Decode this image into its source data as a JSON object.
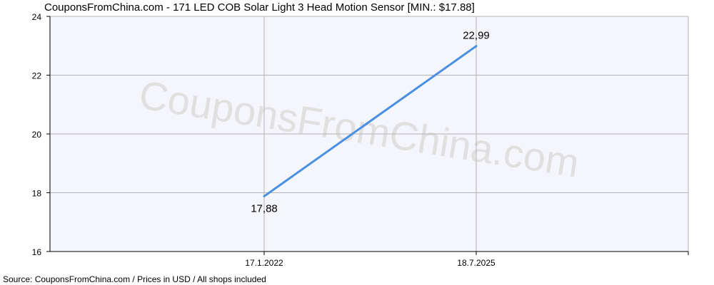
{
  "title": "CouponsFromChina.com - 171 LED COB Solar Light 3 Head Motion Sensor [MIN.: $17.88]",
  "watermark": "CouponsFromChina.com",
  "footer": "Source: CouponsFromChina.com / Prices in USD / All shops included",
  "colors": {
    "plot_background": "#f5f5fc",
    "grid": "#b4b4b4",
    "line": "#4a90e2",
    "axis": "#000000",
    "watermark": "#dcdcdc"
  },
  "chart_data": {
    "type": "line",
    "title": "CouponsFromChina.com - 171 LED COB Solar Light 3 Head Motion Sensor [MIN.: $17.88]",
    "xlabel": "",
    "ylabel": "",
    "x_ticks": [
      "17.1.2022",
      "18.7.2025"
    ],
    "y_ticks": [
      16,
      18,
      20,
      22,
      24
    ],
    "ylim": [
      16,
      24
    ],
    "grid": true,
    "series": [
      {
        "points": [
          {
            "x": "17.1.2022",
            "y": 17.88,
            "label": "17,88"
          },
          {
            "x": "18.7.2025",
            "y": 22.99,
            "label": "22,99"
          }
        ]
      }
    ]
  }
}
